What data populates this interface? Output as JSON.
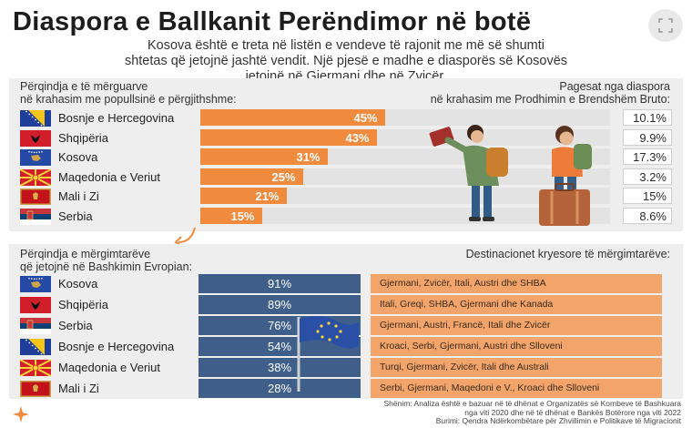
{
  "title": "Diaspora e Ballkanit Perëndimor në botë",
  "subtitle_line1": "Kosova është e treta në listën e vendeve të rajonit me më së shumti",
  "subtitle_line2": "shtetas që jetojnë jashtë vendit. Një pjesë e madhe e diasporës së Kosovës",
  "subtitle_line3": "jetojnë në Gjermani dhe në Zvicër.",
  "section1": {
    "left_header_1": "Përqindja e të mërguarve",
    "left_header_2": "në krahasim me popullsinë e përgjithshme:",
    "right_header_1": "Pagesat nga diaspora",
    "right_header_2": "në krahasim me Prodhimin e Brendshëm Bruto:"
  },
  "section2": {
    "left_header_1": "Përqindja e mërgimtarëve",
    "left_header_2": "që jetojnë në Bashkimin Evropian:",
    "right_header": "Destinacionet kryesore të mërgimtarëve:"
  },
  "chart_data": [
    {
      "type": "bar",
      "categories": [
        "Bosnje e Hercegovina",
        "Shqipëria",
        "Kosova",
        "Maqedonia e Veriut",
        "Mali i Zi",
        "Serbia"
      ],
      "values": [
        45,
        43,
        31,
        25,
        21,
        15
      ],
      "value_labels": [
        "45%",
        "43%",
        "31%",
        "25%",
        "21%",
        "15%"
      ],
      "ylim": [
        0,
        100
      ],
      "remittance_labels": [
        "10.1%",
        "9.9%",
        "17.3%",
        "3.2%",
        "15%",
        "8.6%"
      ]
    },
    {
      "type": "table",
      "categories": [
        "Kosova",
        "Shqipëria",
        "Serbia",
        "Bosnje e Hercegovina",
        "Maqedonia e Veriut",
        "Mali i Zi"
      ],
      "values": [
        91,
        89,
        76,
        54,
        38,
        28
      ],
      "value_labels": [
        "91%",
        "89%",
        "76%",
        "54%",
        "38%",
        "28%"
      ],
      "destinations": [
        "Gjermani, Zvicër, Itali, Austri dhe SHBA",
        "Itali, Greqi, SHBA, Gjermani dhe Kanada",
        "Gjermani, Austri, Francë, Itali dhe Zvicër",
        "Kroaci, Serbi, Gjermani, Austri dhe Slloveni",
        "Turqi, Gjermani, Zvicër, Itali dhe Australi",
        "Serbi, Gjermani, Maqedoni e V., Kroaci dhe Slloveni"
      ]
    }
  ],
  "footer": {
    "line1": "Shënim: Analiza është e bazuar në të dhënat e Organizatës së Kombeve të Bashkuara",
    "line2": "nga viti 2020 dhe në të dhënat e Bankës Botërore nga viti 2022",
    "line3": "Burimi: Qendra Ndërkombëtare për Zhvillimin e Politikave të Migracionit"
  },
  "colors": {
    "bar": "#f08a3c",
    "pct_box": "#3f5f8a",
    "dest_box": "#f2a46a",
    "panel": "#eeeeee"
  },
  "icons": [
    "expand-icon",
    "rfe-logo-icon"
  ]
}
